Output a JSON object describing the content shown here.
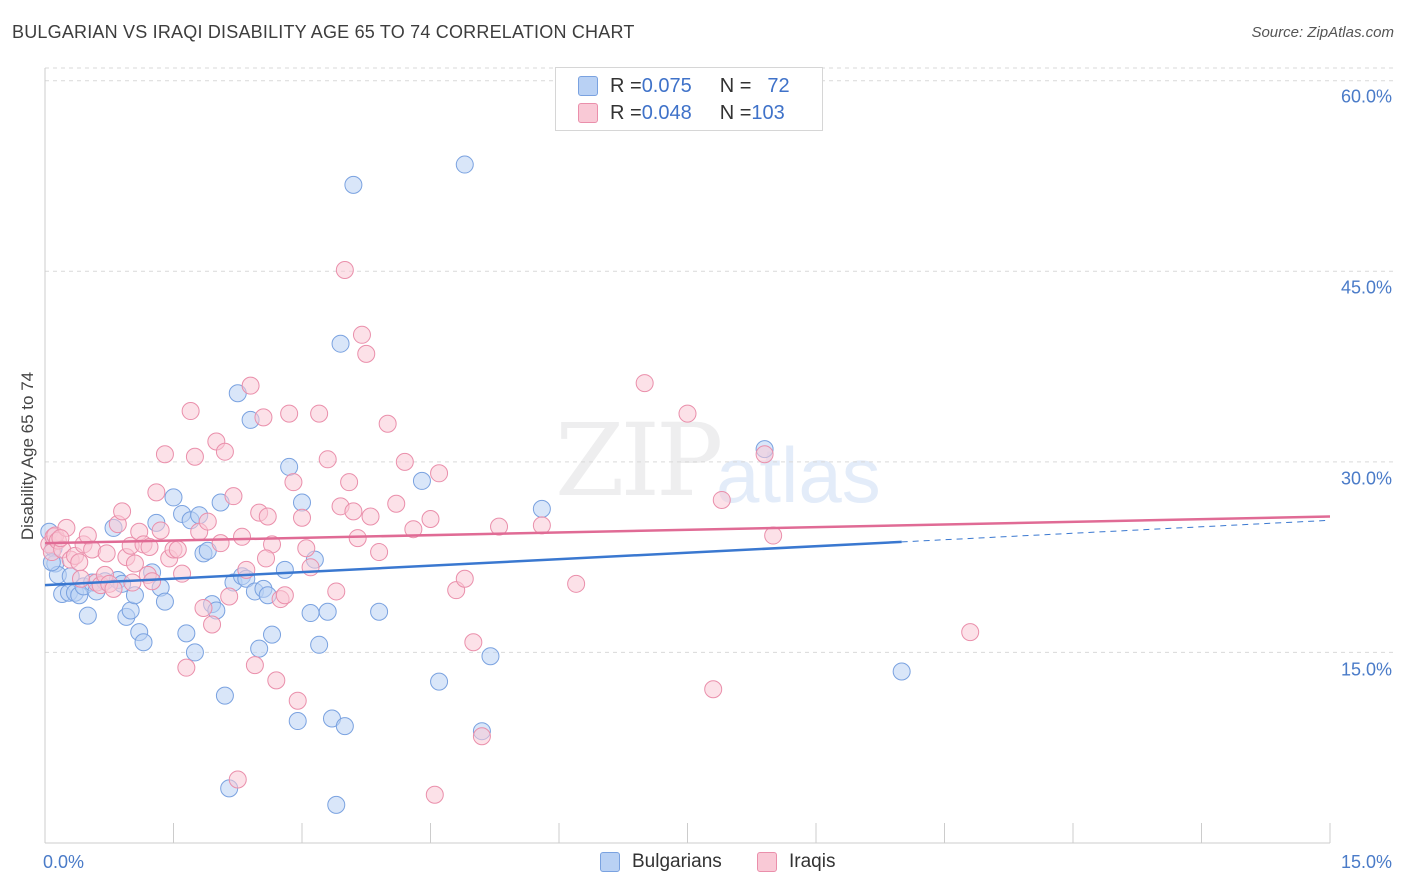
{
  "title": "BULGARIAN VS IRAQI DISABILITY AGE 65 TO 74 CORRELATION CHART",
  "source": "Source: ZipAtlas.com",
  "watermark": {
    "zip": "ZIP",
    "atlas": "atlas"
  },
  "legend_top": [
    {
      "r_label": "R = ",
      "r_value": "0.075",
      "n_label": "N = ",
      "n_value": "72"
    },
    {
      "r_label": "R = ",
      "r_value": "0.048",
      "n_label": "N = ",
      "n_value": "103"
    }
  ],
  "legend_bottom": [
    "Bulgarians",
    "Iraqis"
  ],
  "colors": {
    "bulgarians_fill": "#b9d1f4",
    "bulgarians_stroke": "#7aa2e0",
    "bulgarians_line": "#3a78d0",
    "iraqis_fill": "#f9c9d6",
    "iraqis_stroke": "#ea8fab",
    "iraqis_line": "#e06b95",
    "grid": "#d9d9d9",
    "tick_label": "#4a7bc8"
  },
  "chart_data": {
    "type": "scatter",
    "title": "BULGARIAN VS IRAQI DISABILITY AGE 65 TO 74 CORRELATION CHART",
    "xlabel": "",
    "ylabel": "Disability Age 65 to 74",
    "xlim": [
      0,
      15
    ],
    "ylim": [
      0,
      61
    ],
    "x_tick_labels": [
      "0.0%",
      "15.0%"
    ],
    "y_ticks": [
      15,
      30,
      45,
      60
    ],
    "y_tick_labels": [
      "15.0%",
      "30.0%",
      "45.0%",
      "60.0%"
    ],
    "grid": "horizontal dashed",
    "legend_position": "top-center",
    "series": [
      {
        "name": "Bulgarians",
        "r": 0.075,
        "n": 72,
        "trend": {
          "x": [
            0,
            10.0
          ],
          "y": [
            20.3,
            23.7
          ],
          "dashed_to": [
            15,
            25.4
          ]
        },
        "points": [
          [
            0.05,
            24.5
          ],
          [
            0.1,
            23.2
          ],
          [
            0.12,
            22.0
          ],
          [
            0.15,
            21.1
          ],
          [
            0.2,
            19.6
          ],
          [
            0.28,
            19.7
          ],
          [
            0.3,
            21.0
          ],
          [
            0.35,
            19.7
          ],
          [
            0.4,
            19.5
          ],
          [
            0.45,
            20.2
          ],
          [
            0.5,
            17.9
          ],
          [
            0.55,
            20.5
          ],
          [
            0.6,
            19.8
          ],
          [
            0.7,
            20.6
          ],
          [
            0.8,
            24.8
          ],
          [
            0.85,
            20.7
          ],
          [
            0.9,
            20.4
          ],
          [
            0.95,
            17.8
          ],
          [
            1.0,
            18.3
          ],
          [
            1.05,
            19.5
          ],
          [
            1.1,
            16.6
          ],
          [
            1.15,
            15.8
          ],
          [
            1.25,
            21.3
          ],
          [
            1.3,
            25.2
          ],
          [
            1.35,
            20.1
          ],
          [
            1.4,
            19.0
          ],
          [
            1.5,
            27.2
          ],
          [
            1.6,
            25.9
          ],
          [
            1.65,
            16.5
          ],
          [
            1.7,
            25.4
          ],
          [
            1.75,
            15.0
          ],
          [
            1.8,
            25.8
          ],
          [
            1.85,
            22.8
          ],
          [
            1.9,
            23.0
          ],
          [
            1.95,
            18.8
          ],
          [
            2.0,
            18.3
          ],
          [
            2.05,
            26.8
          ],
          [
            2.1,
            11.6
          ],
          [
            2.15,
            4.3
          ],
          [
            2.2,
            20.5
          ],
          [
            2.25,
            35.4
          ],
          [
            2.3,
            21.0
          ],
          [
            2.35,
            20.8
          ],
          [
            2.4,
            33.3
          ],
          [
            2.45,
            19.8
          ],
          [
            2.5,
            15.3
          ],
          [
            2.55,
            20.0
          ],
          [
            2.6,
            19.5
          ],
          [
            2.65,
            16.4
          ],
          [
            2.8,
            21.5
          ],
          [
            2.85,
            29.6
          ],
          [
            2.95,
            9.6
          ],
          [
            3.0,
            26.8
          ],
          [
            3.1,
            18.1
          ],
          [
            3.15,
            22.3
          ],
          [
            3.2,
            15.6
          ],
          [
            3.3,
            18.2
          ],
          [
            3.35,
            9.8
          ],
          [
            3.4,
            3.0
          ],
          [
            3.45,
            39.3
          ],
          [
            3.5,
            9.2
          ],
          [
            3.6,
            51.8
          ],
          [
            3.9,
            18.2
          ],
          [
            4.4,
            28.5
          ],
          [
            4.6,
            12.7
          ],
          [
            4.9,
            53.4
          ],
          [
            5.1,
            8.8
          ],
          [
            5.2,
            14.7
          ],
          [
            5.8,
            26.3
          ],
          [
            8.4,
            31.0
          ],
          [
            10.0,
            13.5
          ],
          [
            0.08,
            22.1
          ]
        ]
      },
      {
        "name": "Iraqis",
        "r": 0.048,
        "n": 103,
        "trend": {
          "x": [
            0,
            15
          ],
          "y": [
            23.6,
            25.7
          ]
        },
        "points": [
          [
            0.05,
            23.5
          ],
          [
            0.08,
            22.9
          ],
          [
            0.1,
            24.1
          ],
          [
            0.12,
            24.2
          ],
          [
            0.15,
            23.8
          ],
          [
            0.2,
            23.1
          ],
          [
            0.25,
            24.8
          ],
          [
            0.3,
            22.3
          ],
          [
            0.35,
            22.6
          ],
          [
            0.4,
            22.1
          ],
          [
            0.45,
            23.5
          ],
          [
            0.5,
            24.2
          ],
          [
            0.55,
            23.1
          ],
          [
            0.6,
            20.5
          ],
          [
            0.65,
            20.3
          ],
          [
            0.7,
            21.1
          ],
          [
            0.75,
            20.4
          ],
          [
            0.8,
            20.0
          ],
          [
            0.85,
            25.1
          ],
          [
            0.9,
            26.1
          ],
          [
            0.95,
            22.5
          ],
          [
            1.0,
            23.4
          ],
          [
            1.05,
            22.0
          ],
          [
            1.1,
            24.5
          ],
          [
            1.15,
            23.5
          ],
          [
            1.2,
            21.1
          ],
          [
            1.25,
            20.6
          ],
          [
            1.3,
            27.6
          ],
          [
            1.35,
            24.6
          ],
          [
            1.4,
            30.6
          ],
          [
            1.45,
            22.4
          ],
          [
            1.5,
            23.1
          ],
          [
            1.55,
            23.1
          ],
          [
            1.6,
            21.2
          ],
          [
            1.65,
            13.8
          ],
          [
            1.7,
            34.0
          ],
          [
            1.75,
            30.4
          ],
          [
            1.8,
            24.5
          ],
          [
            1.85,
            18.5
          ],
          [
            1.9,
            25.3
          ],
          [
            1.95,
            17.2
          ],
          [
            2.0,
            31.6
          ],
          [
            2.05,
            23.6
          ],
          [
            2.1,
            30.8
          ],
          [
            2.15,
            19.4
          ],
          [
            2.2,
            27.3
          ],
          [
            2.25,
            5.0
          ],
          [
            2.3,
            24.1
          ],
          [
            2.35,
            21.5
          ],
          [
            2.4,
            36.0
          ],
          [
            2.45,
            14.0
          ],
          [
            2.5,
            26.0
          ],
          [
            2.55,
            33.5
          ],
          [
            2.6,
            25.7
          ],
          [
            2.65,
            23.5
          ],
          [
            2.7,
            12.8
          ],
          [
            2.75,
            19.2
          ],
          [
            2.8,
            19.5
          ],
          [
            2.85,
            33.8
          ],
          [
            2.9,
            28.4
          ],
          [
            2.95,
            11.2
          ],
          [
            3.0,
            25.6
          ],
          [
            3.05,
            23.2
          ],
          [
            3.1,
            21.7
          ],
          [
            3.2,
            33.8
          ],
          [
            3.3,
            30.2
          ],
          [
            3.4,
            19.8
          ],
          [
            3.45,
            26.5
          ],
          [
            3.5,
            45.1
          ],
          [
            3.55,
            28.4
          ],
          [
            3.6,
            26.1
          ],
          [
            3.65,
            24.0
          ],
          [
            3.7,
            40.0
          ],
          [
            3.75,
            38.5
          ],
          [
            3.8,
            25.7
          ],
          [
            4.0,
            33.0
          ],
          [
            4.1,
            26.7
          ],
          [
            4.2,
            30.0
          ],
          [
            4.3,
            24.7
          ],
          [
            4.5,
            25.5
          ],
          [
            4.55,
            3.8
          ],
          [
            4.6,
            29.1
          ],
          [
            4.8,
            19.9
          ],
          [
            4.9,
            20.8
          ],
          [
            5.0,
            15.8
          ],
          [
            5.1,
            8.4
          ],
          [
            5.3,
            24.9
          ],
          [
            5.8,
            25.0
          ],
          [
            6.2,
            20.4
          ],
          [
            7.0,
            36.2
          ],
          [
            7.5,
            33.8
          ],
          [
            7.8,
            12.1
          ],
          [
            7.9,
            27.0
          ],
          [
            8.4,
            30.6
          ],
          [
            8.5,
            24.2
          ],
          [
            10.8,
            16.6
          ],
          [
            0.18,
            24.0
          ],
          [
            0.42,
            20.8
          ],
          [
            0.72,
            22.8
          ],
          [
            1.02,
            20.5
          ],
          [
            1.22,
            23.3
          ],
          [
            2.58,
            22.4
          ],
          [
            3.9,
            22.9
          ]
        ]
      }
    ]
  }
}
